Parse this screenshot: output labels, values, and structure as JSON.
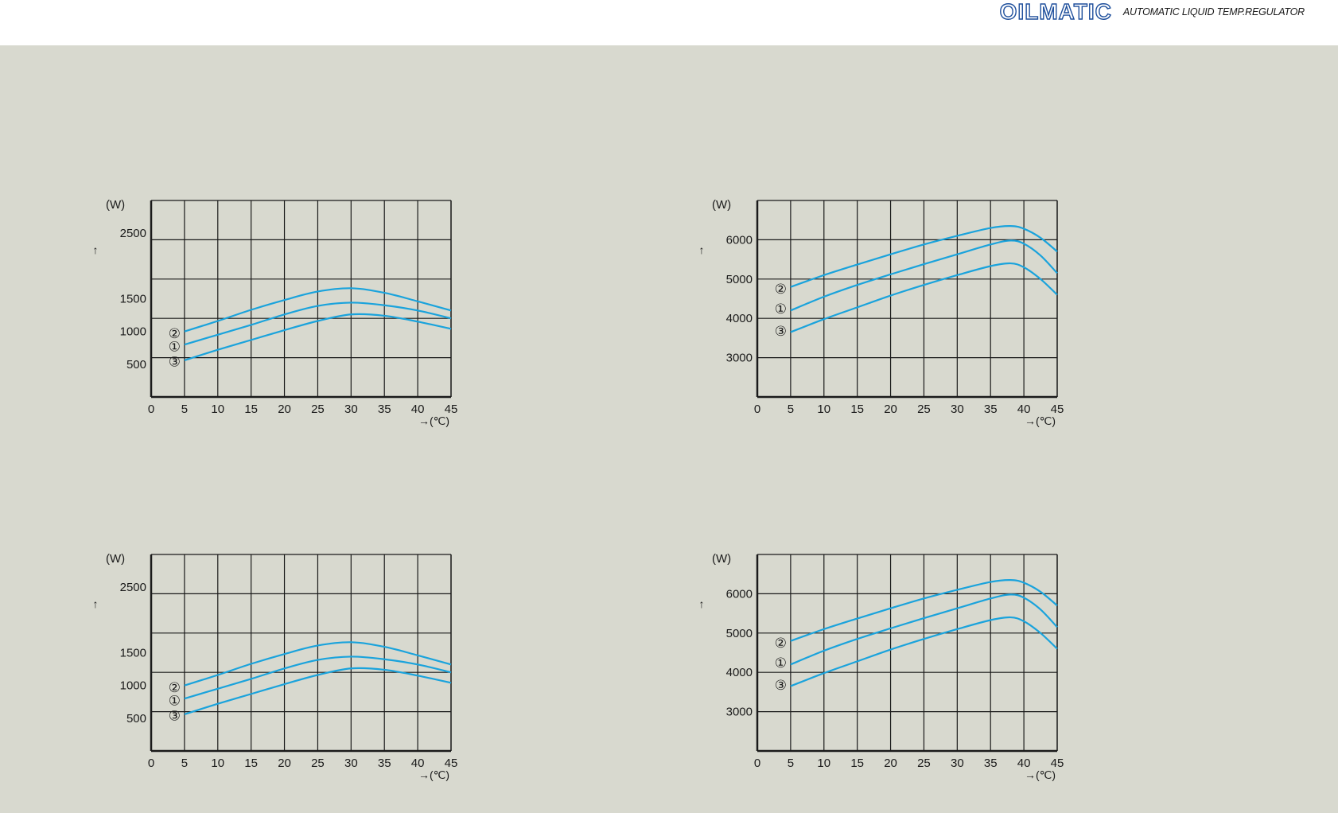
{
  "header": {
    "brand_logo": "OILMATIC",
    "tagline": "AUTOMATIC LIQUID TEMP.REGULATOR"
  },
  "colors": {
    "background": "#d8d9cf",
    "curve": "#1aa3dc",
    "grid": "#1a1a1a",
    "brand": "#1e4f9c"
  },
  "chart_data": [
    {
      "type": "line",
      "y_unit": "(W)",
      "y_arrow": "↑",
      "x_unit": "→(℃)",
      "xlim": [
        0,
        45
      ],
      "ylim": [
        0,
        3000
      ],
      "x_ticks": [
        "0",
        "5",
        "10",
        "15",
        "20",
        "25",
        "30",
        "35",
        "40",
        "45"
      ],
      "y_ticks": [
        {
          "value": 500,
          "label": "500"
        },
        {
          "value": 1000,
          "label": "1000"
        },
        {
          "value": 1500,
          "label": "1500"
        },
        {
          "value": 2500,
          "label": "2500"
        }
      ],
      "grid": true,
      "series": [
        {
          "name": "②",
          "label_value": 970,
          "x": [
            5,
            10,
            15,
            20,
            25,
            30,
            35,
            40,
            45
          ],
          "values": [
            1000,
            1160,
            1330,
            1480,
            1610,
            1660,
            1590,
            1460,
            1320
          ]
        },
        {
          "name": "①",
          "label_value": 770,
          "x": [
            5,
            10,
            15,
            20,
            25,
            30,
            35,
            40,
            45
          ],
          "values": [
            800,
            950,
            1100,
            1260,
            1390,
            1440,
            1400,
            1320,
            1200
          ]
        },
        {
          "name": "③",
          "label_value": 540,
          "x": [
            5,
            10,
            15,
            20,
            25,
            30,
            35,
            40,
            45
          ],
          "values": [
            560,
            720,
            870,
            1020,
            1160,
            1260,
            1240,
            1150,
            1040
          ]
        }
      ]
    },
    {
      "type": "line",
      "y_unit": "(W)",
      "y_arrow": "↑",
      "x_unit": "→(℃)",
      "xlim": [
        0,
        45
      ],
      "ylim": [
        2000,
        7000
      ],
      "x_ticks": [
        "0",
        "5",
        "10",
        "15",
        "20",
        "25",
        "30",
        "35",
        "40",
        "45"
      ],
      "y_ticks": [
        {
          "value": 3000,
          "label": "3000"
        },
        {
          "value": 4000,
          "label": "4000"
        },
        {
          "value": 5000,
          "label": "5000"
        },
        {
          "value": 6000,
          "label": "6000"
        }
      ],
      "grid": true,
      "series": [
        {
          "name": "②",
          "label_value": 4750,
          "x": [
            5,
            10,
            15,
            20,
            25,
            30,
            35,
            38,
            40,
            42.5,
            45
          ],
          "values": [
            4800,
            5100,
            5370,
            5630,
            5880,
            6100,
            6300,
            6350,
            6280,
            6050,
            5700
          ]
        },
        {
          "name": "①",
          "label_value": 4250,
          "x": [
            5,
            10,
            15,
            20,
            25,
            30,
            35,
            38,
            40,
            42.5,
            45
          ],
          "values": [
            4200,
            4550,
            4850,
            5120,
            5380,
            5630,
            5880,
            5980,
            5900,
            5600,
            5150
          ]
        },
        {
          "name": "③",
          "label_value": 3680,
          "x": [
            5,
            10,
            15,
            20,
            25,
            30,
            35,
            38,
            40,
            42.5,
            45
          ],
          "values": [
            3650,
            3980,
            4280,
            4580,
            4850,
            5100,
            5330,
            5400,
            5300,
            5000,
            4600
          ]
        }
      ]
    },
    {
      "type": "line",
      "y_unit": "(W)",
      "y_arrow": "↑",
      "x_unit": "→(℃)",
      "xlim": [
        0,
        45
      ],
      "ylim": [
        0,
        3000
      ],
      "x_ticks": [
        "0",
        "5",
        "10",
        "15",
        "20",
        "25",
        "30",
        "35",
        "40",
        "45"
      ],
      "y_ticks": [
        {
          "value": 500,
          "label": "500"
        },
        {
          "value": 1000,
          "label": "1000"
        },
        {
          "value": 1500,
          "label": "1500"
        },
        {
          "value": 2500,
          "label": "2500"
        }
      ],
      "grid": true,
      "series": [
        {
          "name": "②",
          "label_value": 970,
          "x": [
            5,
            10,
            15,
            20,
            25,
            30,
            35,
            40,
            45
          ],
          "values": [
            1000,
            1160,
            1330,
            1480,
            1610,
            1660,
            1590,
            1460,
            1320
          ]
        },
        {
          "name": "①",
          "label_value": 770,
          "x": [
            5,
            10,
            15,
            20,
            25,
            30,
            35,
            40,
            45
          ],
          "values": [
            800,
            950,
            1100,
            1260,
            1390,
            1440,
            1400,
            1320,
            1200
          ]
        },
        {
          "name": "③",
          "label_value": 540,
          "x": [
            5,
            10,
            15,
            20,
            25,
            30,
            35,
            40,
            45
          ],
          "values": [
            560,
            720,
            870,
            1020,
            1160,
            1260,
            1240,
            1150,
            1040
          ]
        }
      ]
    },
    {
      "type": "line",
      "y_unit": "(W)",
      "y_arrow": "↑",
      "x_unit": "→(℃)",
      "xlim": [
        0,
        45
      ],
      "ylim": [
        2000,
        7000
      ],
      "x_ticks": [
        "0",
        "5",
        "10",
        "15",
        "20",
        "25",
        "30",
        "35",
        "40",
        "45"
      ],
      "y_ticks": [
        {
          "value": 3000,
          "label": "3000"
        },
        {
          "value": 4000,
          "label": "4000"
        },
        {
          "value": 5000,
          "label": "5000"
        },
        {
          "value": 6000,
          "label": "6000"
        }
      ],
      "grid": true,
      "series": [
        {
          "name": "②",
          "label_value": 4750,
          "x": [
            5,
            10,
            15,
            20,
            25,
            30,
            35,
            38,
            40,
            42.5,
            45
          ],
          "values": [
            4800,
            5100,
            5370,
            5630,
            5880,
            6100,
            6300,
            6350,
            6280,
            6050,
            5700
          ]
        },
        {
          "name": "①",
          "label_value": 4250,
          "x": [
            5,
            10,
            15,
            20,
            25,
            30,
            35,
            38,
            40,
            42.5,
            45
          ],
          "values": [
            4200,
            4550,
            4850,
            5120,
            5380,
            5630,
            5880,
            5980,
            5900,
            5600,
            5150
          ]
        },
        {
          "name": "③",
          "label_value": 3680,
          "x": [
            5,
            10,
            15,
            20,
            25,
            30,
            35,
            38,
            40,
            42.5,
            45
          ],
          "values": [
            3650,
            3980,
            4280,
            4580,
            4850,
            5100,
            5330,
            5400,
            5300,
            5000,
            4600
          ]
        }
      ]
    }
  ]
}
